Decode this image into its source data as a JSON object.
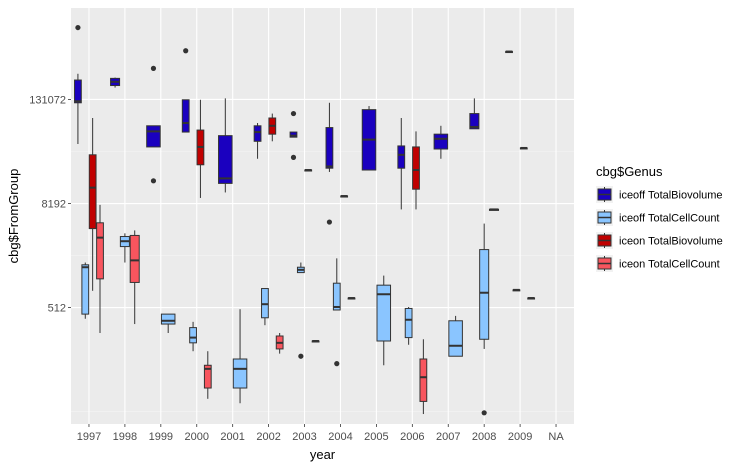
{
  "chart_data": {
    "type": "boxplot",
    "xlabel": "year",
    "ylabel": "cbg$FromGroup",
    "y_scale": "log2",
    "y_ticks": [
      {
        "value": 512,
        "label": "512"
      },
      {
        "value": 8192,
        "label": "8192"
      },
      {
        "value": 131072,
        "label": "131072"
      }
    ],
    "ylim": [
      23,
      1500000
    ],
    "categories": [
      "1997",
      "1998",
      "1999",
      "2000",
      "2001",
      "2002",
      "2003",
      "2004",
      "2005",
      "2006",
      "2007",
      "2008",
      "2009",
      "NA"
    ],
    "grid": true,
    "legend": {
      "title": "cbg$Genus",
      "position": "right",
      "entries": [
        {
          "label": "iceoff TotalBiovolume",
          "color": "#1a00bf"
        },
        {
          "label": "iceoff TotalCellCount",
          "color": "#8ac5ff"
        },
        {
          "label": "iceon TotalBiovolume",
          "color": "#c00000"
        },
        {
          "label": "iceon TotalCellCount",
          "color": "#f8555e"
        }
      ]
    },
    "series": [
      {
        "name": "iceoff TotalBiovolume",
        "color": "#1a00bf",
        "boxes": [
          {
            "x": "1997",
            "lower": 40000,
            "q1": 120000,
            "median": 125000,
            "q3": 220000,
            "upper": 260000,
            "outliers": [
              890000
            ]
          },
          {
            "x": "1998",
            "lower": 180000,
            "q1": 190000,
            "median": 210000,
            "q3": 230000,
            "upper": 235000,
            "outliers": []
          },
          {
            "x": "1999",
            "lower": 37000,
            "q1": 37000,
            "median": 56000,
            "q3": 65000,
            "upper": 65000,
            "outliers": [
              15000,
              300000
            ]
          },
          {
            "x": "2000",
            "lower": 55000,
            "q1": 55000,
            "median": 70000,
            "q3": 130000,
            "upper": 130000,
            "outliers": [
              480000
            ]
          },
          {
            "x": "2001",
            "lower": 11000,
            "q1": 14000,
            "median": 16000,
            "q3": 50000,
            "upper": 135000,
            "outliers": []
          },
          {
            "x": "2002",
            "lower": 27000,
            "q1": 43000,
            "median": 55000,
            "q3": 65000,
            "upper": 70000,
            "outliers": []
          },
          {
            "x": "2003",
            "lower": 48000,
            "q1": 48000,
            "median": 50000,
            "q3": 55000,
            "upper": 55000,
            "outliers": [
              28000,
              90000
            ]
          },
          {
            "x": "2004",
            "lower": 19000,
            "q1": 21000,
            "median": 22000,
            "q3": 62000,
            "upper": 120000,
            "outliers": [
              5000
            ]
          },
          {
            "x": "2005",
            "lower": 20000,
            "q1": 20000,
            "median": 45000,
            "q3": 100000,
            "upper": 110000,
            "outliers": []
          },
          {
            "x": "2006",
            "lower": 7000,
            "q1": 21000,
            "median": 30000,
            "q3": 38000,
            "upper": 80000,
            "outliers": []
          },
          {
            "x": "2007",
            "lower": 27000,
            "q1": 35000,
            "median": 46000,
            "q3": 52000,
            "upper": 65000,
            "outliers": []
          },
          {
            "x": "2008",
            "lower": 60000,
            "q1": 60000,
            "median": 63000,
            "q3": 90000,
            "upper": 135000,
            "outliers": []
          },
          {
            "x": "2009",
            "lower": 470000,
            "q1": 470000,
            "median": 470000,
            "q3": 470000,
            "upper": 470000,
            "outliers": []
          }
        ]
      },
      {
        "name": "iceoff TotalCellCount",
        "color": "#8ac5ff",
        "boxes": [
          {
            "x": "1997",
            "lower": 380,
            "q1": 430,
            "median": 1500,
            "q3": 1600,
            "upper": 1700,
            "outliers": []
          },
          {
            "x": "1998",
            "lower": 1700,
            "q1": 2600,
            "median": 3000,
            "q3": 3400,
            "upper": 3700,
            "outliers": []
          },
          {
            "x": "1999",
            "lower": 260,
            "q1": 330,
            "median": 360,
            "q3": 430,
            "upper": 430,
            "outliers": []
          },
          {
            "x": "2000",
            "lower": 160,
            "q1": 200,
            "median": 230,
            "q3": 300,
            "upper": 350,
            "outliers": []
          },
          {
            "x": "2001",
            "lower": 40,
            "q1": 60,
            "median": 100,
            "q3": 130,
            "upper": 490,
            "outliers": []
          },
          {
            "x": "2002",
            "lower": 320,
            "q1": 390,
            "median": 560,
            "q3": 850,
            "upper": 850,
            "outliers": []
          },
          {
            "x": "2003",
            "lower": 1300,
            "q1": 1300,
            "median": 1400,
            "q3": 1500,
            "upper": 1700,
            "outliers": [
              140
            ]
          },
          {
            "x": "2004",
            "lower": 480,
            "q1": 480,
            "median": 520,
            "q3": 980,
            "upper": 1900,
            "outliers": [
              115
            ]
          },
          {
            "x": "2005",
            "lower": 110,
            "q1": 210,
            "median": 730,
            "q3": 930,
            "upper": 1200,
            "outliers": []
          },
          {
            "x": "2006",
            "lower": 190,
            "q1": 230,
            "median": 370,
            "q3": 500,
            "upper": 520,
            "outliers": []
          },
          {
            "x": "2007",
            "lower": 140,
            "q1": 140,
            "median": 185,
            "q3": 360,
            "upper": 410,
            "outliers": []
          },
          {
            "x": "2008",
            "lower": 170,
            "q1": 220,
            "median": 760,
            "q3": 2400,
            "upper": 4800,
            "outliers": [
              31
            ]
          },
          {
            "x": "2009",
            "lower": 820,
            "q1": 820,
            "median": 820,
            "q3": 820,
            "upper": 820,
            "outliers": []
          }
        ]
      },
      {
        "name": "iceon TotalBiovolume",
        "color": "#c00000",
        "boxes": [
          {
            "x": "1997",
            "lower": 800,
            "q1": 4200,
            "median": 12500,
            "q3": 30000,
            "upper": 80000,
            "outliers": []
          },
          {
            "x": "2000",
            "lower": 9500,
            "q1": 23000,
            "median": 37000,
            "q3": 58000,
            "upper": 130000,
            "outliers": []
          },
          {
            "x": "2002",
            "lower": 43000,
            "q1": 52000,
            "median": 65000,
            "q3": 80000,
            "upper": 90000,
            "outliers": []
          },
          {
            "x": "2003",
            "lower": 20000,
            "q1": 20000,
            "median": 20000,
            "q3": 20000,
            "upper": 20000,
            "outliers": []
          },
          {
            "x": "2004",
            "lower": 10000,
            "q1": 10000,
            "median": 10000,
            "q3": 10000,
            "upper": 10000,
            "outliers": []
          },
          {
            "x": "2006",
            "lower": 7000,
            "q1": 12000,
            "median": 20000,
            "q3": 37000,
            "upper": 56000,
            "outliers": []
          },
          {
            "x": "2008",
            "lower": 7000,
            "q1": 7000,
            "median": 7000,
            "q3": 7000,
            "upper": 7000,
            "outliers": []
          },
          {
            "x": "2009",
            "lower": 36000,
            "q1": 36000,
            "median": 36000,
            "q3": 36000,
            "upper": 36000,
            "outliers": []
          }
        ]
      },
      {
        "name": "iceon TotalCellCount",
        "color": "#f8555e",
        "boxes": [
          {
            "x": "1997",
            "lower": 260,
            "q1": 1100,
            "median": 3300,
            "q3": 4900,
            "upper": 7900,
            "outliers": []
          },
          {
            "x": "1998",
            "lower": 330,
            "q1": 1000,
            "median": 1800,
            "q3": 3500,
            "upper": 4000,
            "outliers": []
          },
          {
            "x": "2000",
            "lower": 45,
            "q1": 60,
            "median": 100,
            "q3": 110,
            "upper": 160,
            "outliers": []
          },
          {
            "x": "2002",
            "lower": 150,
            "q1": 170,
            "median": 200,
            "q3": 240,
            "upper": 260,
            "outliers": []
          },
          {
            "x": "2003",
            "lower": 210,
            "q1": 210,
            "median": 210,
            "q3": 210,
            "upper": 210,
            "outliers": []
          },
          {
            "x": "2004",
            "lower": 660,
            "q1": 660,
            "median": 660,
            "q3": 660,
            "upper": 660,
            "outliers": []
          },
          {
            "x": "2006",
            "lower": 30,
            "q1": 42,
            "median": 80,
            "q3": 130,
            "upper": 220,
            "outliers": []
          },
          {
            "x": "2009",
            "lower": 660,
            "q1": 660,
            "median": 660,
            "q3": 660,
            "upper": 660,
            "outliers": []
          }
        ]
      }
    ]
  }
}
